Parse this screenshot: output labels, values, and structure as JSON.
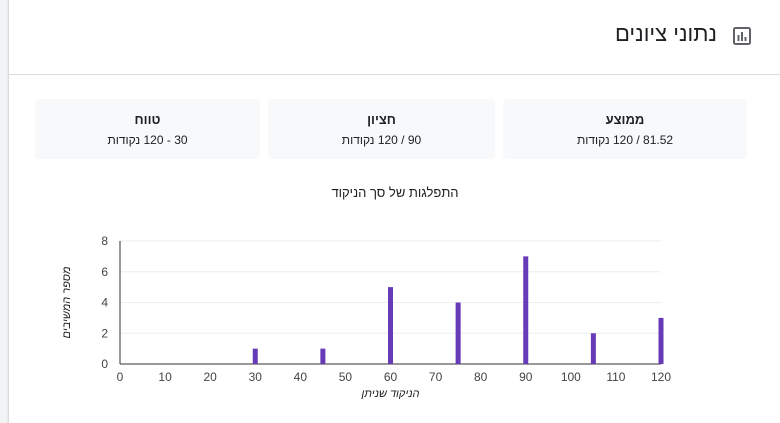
{
  "header": {
    "title": "נתוני ציונים",
    "icon": "bar-chart-icon"
  },
  "stats": [
    {
      "label": "ממוצע",
      "value": "81.52 / 120 נקודות"
    },
    {
      "label": "חציון",
      "value": "90 / 120 נקודות"
    },
    {
      "label": "טווח",
      "value": "30 - 120 נקודות"
    }
  ],
  "chart_title": "התפלגות של סך הניקוד",
  "chart_data": {
    "type": "bar",
    "title": "התפלגות של סך הניקוד",
    "xlabel": "הניקוד שניתן",
    "ylabel": "מספר המשיבים",
    "xlim": [
      0,
      120
    ],
    "ylim": [
      0,
      8
    ],
    "xticks": [
      0,
      10,
      20,
      30,
      40,
      50,
      60,
      70,
      80,
      90,
      100,
      110,
      120
    ],
    "yticks": [
      0,
      2,
      4,
      6,
      8
    ],
    "x": [
      30,
      45,
      60,
      75,
      90,
      105,
      120
    ],
    "values": [
      1,
      1,
      5,
      4,
      7,
      2,
      3
    ],
    "color": "#673ab7",
    "grid": true
  }
}
